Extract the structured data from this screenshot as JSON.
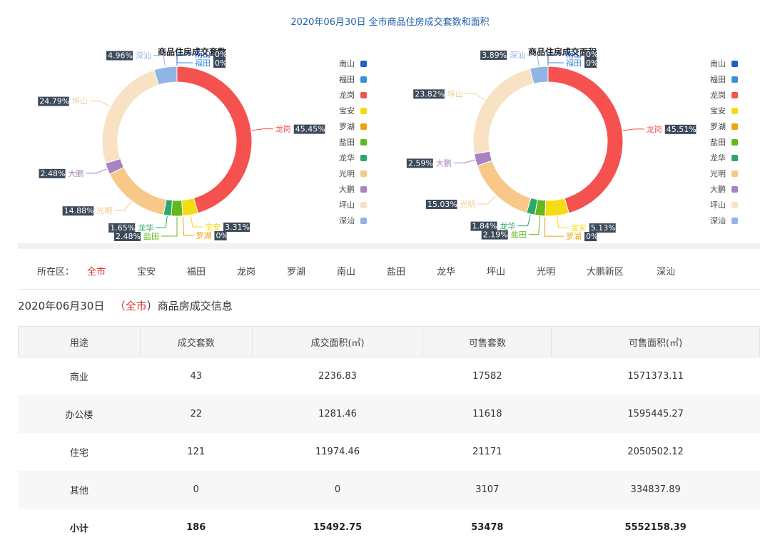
{
  "page_title": "2020年06月30日 全市商品住房成交套数和面积",
  "chart_data": [
    {
      "type": "pie",
      "title": "商品住房成交套数",
      "categories": [
        "南山",
        "福田",
        "龙岗",
        "宝安",
        "罗湖",
        "盐田",
        "龙华",
        "光明",
        "大鹏",
        "坪山",
        "深汕"
      ],
      "values": [
        0,
        0,
        45.45,
        3.31,
        0,
        2.48,
        1.65,
        14.88,
        2.48,
        24.79,
        4.96
      ],
      "labels": [
        "0%",
        "0%",
        "45.45%",
        "3.31%",
        "0%",
        "2.48%",
        "1.65%",
        "14.88%",
        "2.48%",
        "24.79%",
        "4.96%"
      ],
      "colors": [
        "#1f5fc8",
        "#3d8ee0",
        "#f4514f",
        "#f5dc12",
        "#eda411",
        "#62b81c",
        "#2aa86e",
        "#f8c888",
        "#a882c2",
        "#f8e2c4",
        "#8fb4e6"
      ],
      "legend": "right"
    },
    {
      "type": "pie",
      "title": "商品住房成交面积",
      "categories": [
        "南山",
        "福田",
        "龙岗",
        "宝安",
        "罗湖",
        "盐田",
        "龙华",
        "光明",
        "大鹏",
        "坪山",
        "深汕"
      ],
      "values": [
        0,
        0,
        45.51,
        5.13,
        0,
        2.19,
        1.84,
        15.03,
        2.59,
        23.82,
        3.89
      ],
      "labels": [
        "0%",
        "0%",
        "45.51%",
        "5.13%",
        "0%",
        "2.19%",
        "1.84%",
        "15.03%",
        "2.59%",
        "23.82%",
        "3.89%"
      ],
      "colors": [
        "#1f5fc8",
        "#3d8ee0",
        "#f4514f",
        "#f5dc12",
        "#eda411",
        "#62b81c",
        "#2aa86e",
        "#f8c888",
        "#a882c2",
        "#f8e2c4",
        "#8fb4e6"
      ],
      "legend": "right"
    }
  ],
  "filter": {
    "label": "所在区：",
    "items": [
      "全市",
      "宝安",
      "福田",
      "龙岗",
      "罗湖",
      "南山",
      "盐田",
      "龙华",
      "坪山",
      "光明",
      "大鹏新区",
      "深汕"
    ],
    "active": "全市"
  },
  "info": {
    "date": "2020年06月30日",
    "open": "（",
    "region": "全市",
    "close": "）",
    "suffix": "商品房成交信息"
  },
  "table": {
    "headers": [
      "用途",
      "成交套数",
      "成交面积(㎡)",
      "可售套数",
      "可售面积(㎡)"
    ],
    "rows": [
      [
        "商业",
        "43",
        "2236.83",
        "17582",
        "1571373.11"
      ],
      [
        "办公楼",
        "22",
        "1281.46",
        "11618",
        "1595445.27"
      ],
      [
        "住宅",
        "121",
        "11974.46",
        "21171",
        "2050502.12"
      ],
      [
        "其他",
        "0",
        "0",
        "3107",
        "334837.89"
      ]
    ],
    "total": [
      "小计",
      "186",
      "15492.75",
      "53478",
      "5552158.39"
    ]
  }
}
